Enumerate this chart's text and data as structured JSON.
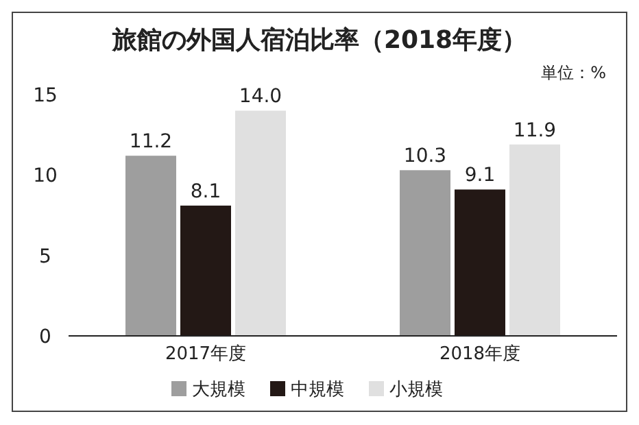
{
  "chart_data": {
    "type": "bar",
    "title": "旅館の外国人宿泊比率（2018年度）",
    "annotations": [
      "単位：%"
    ],
    "categories": [
      "2017年度",
      "2018年度"
    ],
    "series": [
      {
        "name": "大規模",
        "color": "#9e9e9e",
        "values": [
          11.2,
          10.3
        ],
        "value_labels": [
          "11.2",
          "10.3"
        ]
      },
      {
        "name": "中規模",
        "color": "#231815",
        "values": [
          8.1,
          9.1
        ],
        "value_labels": [
          "8.1",
          "9.1"
        ]
      },
      {
        "name": "小規模",
        "color": "#e0e0e0",
        "values": [
          14.0,
          11.9
        ],
        "value_labels": [
          "14.0",
          "11.9"
        ]
      }
    ],
    "ylim": [
      0,
      15
    ],
    "yticks": [
      0,
      5,
      10,
      15
    ],
    "legend": "bottom"
  }
}
